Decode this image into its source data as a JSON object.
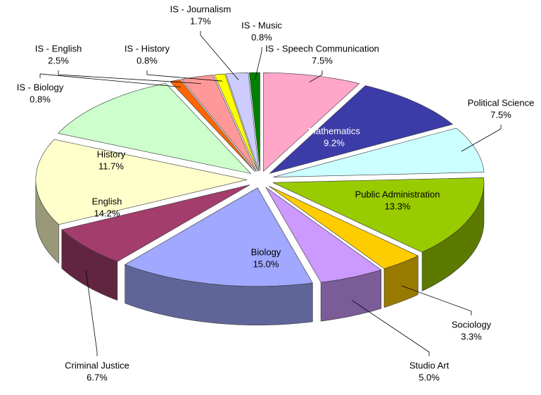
{
  "chart_data": {
    "type": "pie",
    "three_d": true,
    "exploded": true,
    "categories": [
      "IS - Speech Communication",
      "Mathematics",
      "Political Science",
      "Public Administration",
      "Sociology",
      "Studio Art",
      "Biology",
      "Criminal Justice",
      "English",
      "History",
      "IS - Biology",
      "IS - English",
      "IS - History",
      "IS - Journalism",
      "IS - Music"
    ],
    "values": [
      7.5,
      9.2,
      7.5,
      13.3,
      3.3,
      5.0,
      15.0,
      6.7,
      14.2,
      11.7,
      0.8,
      2.5,
      0.8,
      1.7,
      0.8
    ],
    "value_labels": [
      "7.5%",
      "9.2%",
      "7.5%",
      "13.3%",
      "3.3%",
      "5.0%",
      "15.0%",
      "6.7%",
      "14.2%",
      "11.7%",
      "0.8%",
      "2.5%",
      "0.8%",
      "1.7%",
      "0.8%"
    ],
    "colors": [
      "#ffa6c9",
      "#3c3ca8",
      "#ccffff",
      "#99cc00",
      "#ffcc00",
      "#cc99ff",
      "#a0a8ff",
      "#a33d6b",
      "#ffffcc",
      "#ccffcc",
      "#ff6600",
      "#ff9999",
      "#ffff00",
      "#ccccff",
      "#008000"
    ]
  }
}
